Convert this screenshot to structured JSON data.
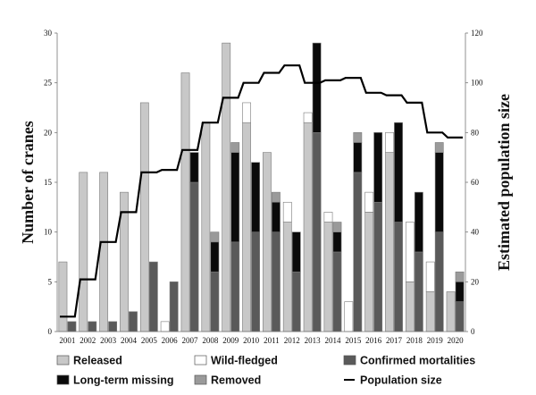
{
  "chart_data": {
    "type": "bar",
    "stacked": true,
    "categories": [
      "2001",
      "2002",
      "2003",
      "2004",
      "2005",
      "2006",
      "2007",
      "2008",
      "2009",
      "2010",
      "2011",
      "2012",
      "2013",
      "2014",
      "2015",
      "2016",
      "2017",
      "2018",
      "2019",
      "2020"
    ],
    "ylabel": "Number of cranes",
    "y2label": "Estimated population size",
    "ylim": [
      0,
      30
    ],
    "y2lim": [
      0,
      120
    ],
    "yticks": [
      "0",
      "5",
      "10",
      "15",
      "20",
      "25",
      "30"
    ],
    "y2ticks": [
      "0",
      "20",
      "40",
      "60",
      "80",
      "100",
      "120"
    ],
    "grid": false,
    "legend_position": "bottom",
    "series": [
      {
        "name": "Released",
        "group": "left",
        "color": "#c8c8c8",
        "values": [
          7,
          16,
          16,
          14,
          23,
          0,
          26,
          21,
          29,
          21,
          18,
          11,
          21,
          11,
          0,
          12,
          18,
          5,
          4,
          4
        ]
      },
      {
        "name": "Wild-fledged",
        "group": "left",
        "color": "#ffffff",
        "values": [
          0,
          0,
          0,
          0,
          0,
          1,
          0,
          0,
          0,
          2,
          0,
          2,
          1,
          1,
          3,
          2,
          2,
          6,
          3,
          0
        ]
      },
      {
        "name": "Confirmed mortalities",
        "group": "right",
        "color": "#5a5a5a",
        "values": [
          1,
          1,
          1,
          2,
          7,
          5,
          15,
          6,
          9,
          10,
          10,
          6,
          20,
          8,
          16,
          13,
          11,
          8,
          10,
          3
        ]
      },
      {
        "name": "Long-term missing",
        "group": "right",
        "color": "#0a0a0a",
        "values": [
          0,
          0,
          0,
          0,
          0,
          0,
          3,
          3,
          9,
          7,
          3,
          4,
          9,
          2,
          3,
          7,
          10,
          6,
          8,
          2
        ]
      },
      {
        "name": "Removed",
        "group": "right",
        "color": "#9a9a9a",
        "values": [
          0,
          0,
          0,
          0,
          0,
          0,
          0,
          1,
          1,
          0,
          1,
          0,
          0,
          1,
          1,
          0,
          0,
          0,
          1,
          1
        ]
      },
      {
        "name": "Population size",
        "type": "line",
        "axis": "right",
        "color": "#000000",
        "values": [
          6,
          21,
          36,
          48,
          64,
          65,
          73,
          84,
          94,
          100,
          104,
          107,
          100,
          101,
          102,
          96,
          95,
          92,
          80,
          78
        ]
      }
    ]
  }
}
